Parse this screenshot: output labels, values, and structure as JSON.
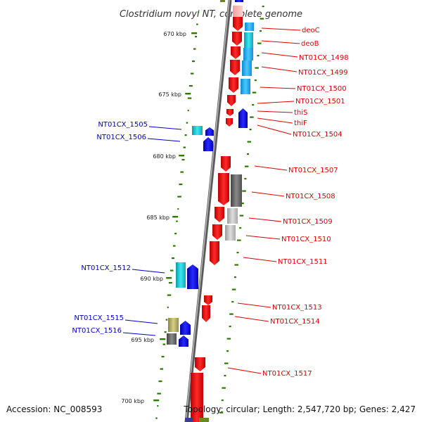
{
  "title": "Clostridium novyi NT, complete genome",
  "footer": {
    "accession": "Accession: NC_008593",
    "summary": "Topology: circular; Length: 2,547,720 bp; Genes: 2,427"
  },
  "scale_labels": [
    "670 kbp",
    "675 kbp",
    "680 kbp",
    "685 kbp",
    "690 kbp",
    "695 kbp",
    "700 kbp"
  ],
  "genes_right": [
    {
      "id": "deoC",
      "label": "deoC"
    },
    {
      "id": "deoB",
      "label": "deoB"
    },
    {
      "id": "NT01CX_1498",
      "label": "NT01CX_1498"
    },
    {
      "id": "NT01CX_1499",
      "label": "NT01CX_1499"
    },
    {
      "id": "NT01CX_1500",
      "label": "NT01CX_1500"
    },
    {
      "id": "NT01CX_1501",
      "label": "NT01CX_1501"
    },
    {
      "id": "thiS",
      "label": "thiS"
    },
    {
      "id": "thiF",
      "label": "thiF"
    },
    {
      "id": "NT01CX_1504",
      "label": "NT01CX_1504"
    },
    {
      "id": "NT01CX_1507",
      "label": "NT01CX_1507"
    },
    {
      "id": "NT01CX_1508",
      "label": "NT01CX_1508"
    },
    {
      "id": "NT01CX_1509",
      "label": "NT01CX_1509"
    },
    {
      "id": "NT01CX_1510",
      "label": "NT01CX_1510"
    },
    {
      "id": "NT01CX_1511",
      "label": "NT01CX_1511"
    },
    {
      "id": "NT01CX_1513",
      "label": "NT01CX_1513"
    },
    {
      "id": "NT01CX_1514",
      "label": "NT01CX_1514"
    },
    {
      "id": "NT01CX_1517",
      "label": "NT01CX_1517"
    }
  ],
  "genes_left": [
    {
      "id": "NT01CX_1505",
      "label": "NT01CX_1505"
    },
    {
      "id": "NT01CX_1506",
      "label": "NT01CX_1506"
    },
    {
      "id": "NT01CX_1512",
      "label": "NT01CX_1512"
    },
    {
      "id": "NT01CX_1515",
      "label": "NT01CX_1515"
    },
    {
      "id": "NT01CX_1516",
      "label": "NT01CX_1516"
    }
  ],
  "colors": {
    "forward_cds": "#ff0000",
    "reverse_cds": "#0000ff",
    "cyan_feature": "#1ec8d8",
    "backbone": "#888888",
    "gc_ticks": "#2a7a00",
    "label_red": "#e00000",
    "label_blue": "#0000cc"
  }
}
